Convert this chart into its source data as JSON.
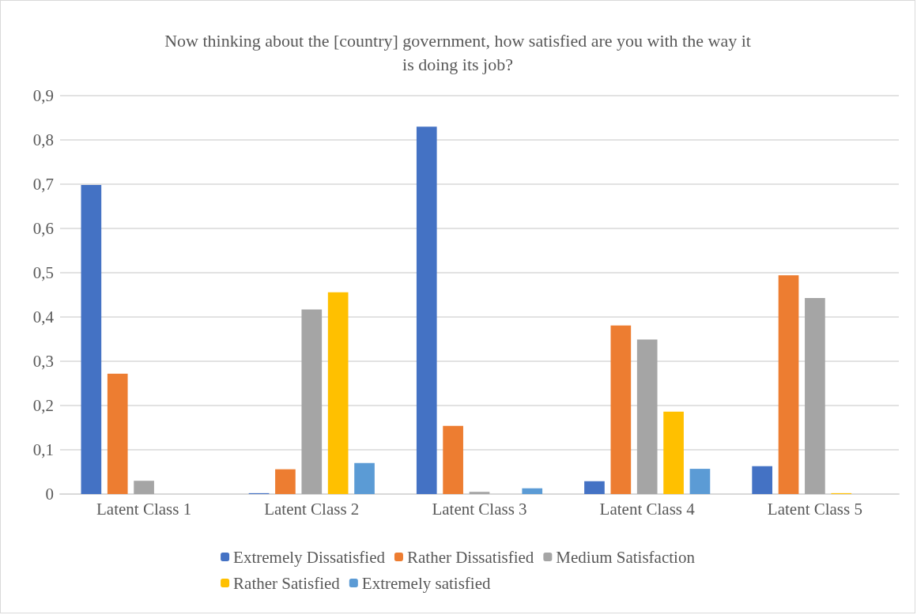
{
  "chart_data": {
    "type": "bar",
    "title": "Now thinking about the [country] government, how satisfied are you with the way it\nis doing its job?",
    "categories": [
      "Latent Class 1",
      "Latent Class 2",
      "Latent Class 3",
      "Latent Class 4",
      "Latent Class 5"
    ],
    "series": [
      {
        "name": "Extremely Dissatisfied",
        "color": "#4472c4",
        "values": [
          0.698,
          0.002,
          0.83,
          0.029,
          0.063
        ]
      },
      {
        "name": "Rather Dissatisfied",
        "color": "#ed7d31",
        "values": [
          0.272,
          0.056,
          0.154,
          0.381,
          0.494
        ]
      },
      {
        "name": "Medium Satisfaction",
        "color": "#a5a5a5",
        "values": [
          0.03,
          0.417,
          0.005,
          0.349,
          0.443
        ]
      },
      {
        "name": "Rather Satisfied",
        "color": "#ffc000",
        "values": [
          0,
          0.456,
          0,
          0.186,
          0.002
        ]
      },
      {
        "name": "Extremely satisfied",
        "color": "#5b9bd5",
        "values": [
          0,
          0.07,
          0.013,
          0.057,
          0
        ]
      }
    ],
    "ylim": [
      0,
      0.9
    ],
    "yticks": [
      0,
      {
        "value": 0.1,
        "label": "0,1"
      },
      {
        "value": 0.2,
        "label": "0,2"
      },
      {
        "value": 0.3,
        "label": "0,3"
      },
      {
        "value": 0.4,
        "label": "0,4"
      },
      {
        "value": 0.5,
        "label": "0,5"
      },
      {
        "value": 0.6,
        "label": "0,6"
      },
      {
        "value": 0.7,
        "label": "0,7"
      },
      {
        "value": 0.8,
        "label": "0,8"
      },
      {
        "value": 0.9,
        "label": "0,9"
      }
    ],
    "grid": "y",
    "legend": "bottom"
  }
}
